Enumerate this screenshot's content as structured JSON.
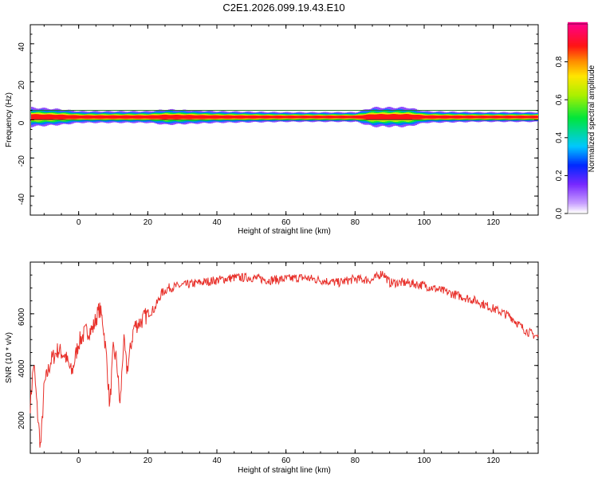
{
  "title": "C2E1.2026.099.19.43.E10",
  "chart_data": [
    {
      "type": "heatmap",
      "title": "C2E1.2026.099.19.43.E10",
      "xlabel": "Height of straight line (km)",
      "ylabel": "Frequency (Hz)",
      "xlim": [
        -14,
        133
      ],
      "ylim": [
        -50,
        50
      ],
      "x_ticks": [
        0,
        20,
        40,
        60,
        80,
        100,
        120
      ],
      "y_ticks": [
        -40,
        -20,
        0,
        20,
        40
      ],
      "colorbar": {
        "label": "Normalized spectral amplitude",
        "range": [
          0,
          1
        ],
        "ticks": [
          "0.0",
          "0.2",
          "0.4",
          "0.6",
          "0.8"
        ]
      },
      "band": {
        "center_hz": 1.5,
        "half_width_hz_profile": [
          [
            -14,
            5
          ],
          [
            -5,
            4
          ],
          [
            0,
            3
          ],
          [
            10,
            3
          ],
          [
            20,
            3
          ],
          [
            25,
            4
          ],
          [
            40,
            3
          ],
          [
            60,
            2.5
          ],
          [
            80,
            2.5
          ],
          [
            85,
            5
          ],
          [
            95,
            5
          ],
          [
            100,
            3
          ],
          [
            115,
            2.5
          ],
          [
            133,
            2.5
          ]
        ]
      }
    },
    {
      "type": "line",
      "xlabel": "Height of straight line (km)",
      "ylabel": "SNR (10 * v/v)",
      "xlim": [
        -14,
        133
      ],
      "ylim": [
        600,
        8000
      ],
      "x_ticks": [
        0,
        20,
        40,
        60,
        80,
        100,
        120
      ],
      "y_ticks": [
        2000,
        4000,
        6000
      ],
      "series": [
        {
          "color": "#e8302a",
          "x": [
            -14,
            -13,
            -12,
            -11,
            -10,
            -8,
            -6,
            -4,
            -2,
            0,
            2,
            4,
            6,
            7,
            8,
            9,
            10,
            11,
            12,
            13,
            14,
            16,
            18,
            20,
            22,
            24,
            26,
            30,
            35,
            40,
            45,
            50,
            55,
            60,
            65,
            70,
            75,
            80,
            85,
            88,
            90,
            95,
            100,
            105,
            110,
            115,
            120,
            125,
            128,
            130,
            133
          ],
          "values": [
            2500,
            4100,
            2300,
            800,
            3200,
            4200,
            4600,
            4400,
            3700,
            4900,
            5300,
            5400,
            6200,
            5700,
            4400,
            2400,
            4600,
            4200,
            2400,
            5000,
            3800,
            5500,
            5700,
            6000,
            6200,
            6800,
            7000,
            7100,
            7200,
            7300,
            7400,
            7400,
            7300,
            7350,
            7400,
            7300,
            7200,
            7350,
            7300,
            7600,
            7200,
            7200,
            7100,
            6900,
            6700,
            6500,
            6200,
            5900,
            5500,
            5300,
            5100
          ]
        }
      ]
    }
  ]
}
